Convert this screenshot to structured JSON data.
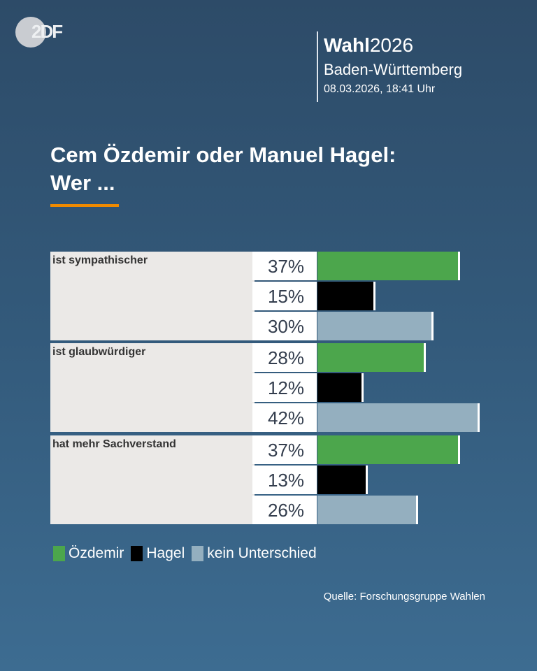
{
  "logo": "2DF",
  "header": {
    "wahl_bold": "Wahl",
    "wahl_year": "2026",
    "region": "Baden-Württemberg",
    "datetime": "08.03.2026, 18:41 Uhr"
  },
  "chart_data": {
    "type": "bar",
    "title": "Cem Özdemir oder Manuel Hagel: Wer ...",
    "title_line1": "Cem Özdemir oder Manuel Hagel:",
    "title_line2": "Wer ...",
    "categories": [
      "ist sympathischer",
      "ist glaubwürdiger",
      "hat mehr Sachverstand"
    ],
    "series": [
      {
        "name": "Özdemir",
        "color": "#4ca64c",
        "values": [
          37,
          28,
          37
        ],
        "labels": [
          "37%",
          "28%",
          "37%"
        ]
      },
      {
        "name": "Hagel",
        "color": "#000000",
        "values": [
          15,
          12,
          13
        ],
        "labels": [
          "15%",
          "12%",
          "13%"
        ]
      },
      {
        "name": "kein Unterschied",
        "color": "#94afbf",
        "values": [
          30,
          42,
          26
        ],
        "labels": [
          "30%",
          "42%",
          "26%"
        ]
      }
    ],
    "unit": "%",
    "legend": "bottom-left",
    "grid": false
  },
  "source": "Quelle: Forschungsgruppe Wahlen"
}
